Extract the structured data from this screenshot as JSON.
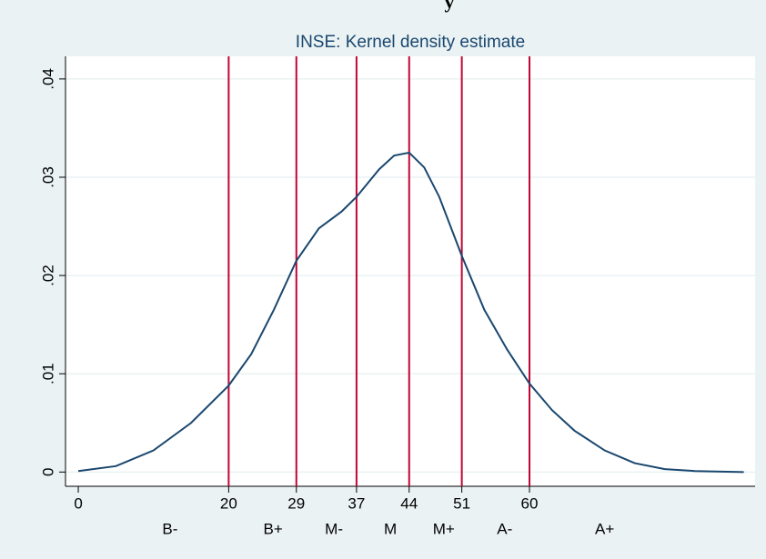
{
  "chart_data": {
    "type": "line",
    "supertitle": "y",
    "title": "INSE: Kernel density estimate",
    "x": [
      0,
      5,
      10,
      15,
      20,
      23,
      26,
      29,
      32,
      35,
      37,
      40,
      42,
      44,
      46,
      48,
      51,
      54,
      57,
      60,
      63,
      66,
      70,
      74,
      78,
      82,
      88.5
    ],
    "series": [
      {
        "name": "INSE",
        "color": "#1a476f",
        "values": [
          0.0001,
          0.0006,
          0.0022,
          0.005,
          0.0088,
          0.012,
          0.0165,
          0.0215,
          0.0248,
          0.0265,
          0.028,
          0.0308,
          0.0322,
          0.0325,
          0.031,
          0.028,
          0.022,
          0.0165,
          0.0125,
          0.009,
          0.0063,
          0.0042,
          0.0022,
          0.0009,
          0.0003,
          0.0001,
          0
        ]
      }
    ],
    "xlim": [
      -1.7,
      90
    ],
    "ylim": [
      -0.00145,
      0.0423
    ],
    "xticks": [
      0,
      20,
      29,
      37,
      44,
      51,
      60
    ],
    "yticks": [
      0,
      {
        "value": 0.01,
        "label": ".01"
      },
      {
        "value": 0.02,
        "label": ".02"
      },
      {
        "value": 0.03,
        "label": ".03"
      },
      {
        "value": 0.04,
        "label": ".04"
      }
    ],
    "grid": true,
    "reference_lines": {
      "color": "#c10534",
      "x": [
        20,
        29,
        37,
        44,
        51,
        60
      ]
    },
    "band_labels": [
      {
        "text": "B-",
        "x": 12.2
      },
      {
        "text": "B+",
        "x": 25.9
      },
      {
        "text": "M-",
        "x": 34
      },
      {
        "text": "M",
        "x": 41.5
      },
      {
        "text": "M+",
        "x": 48.6
      },
      {
        "text": "A-",
        "x": 56.7
      },
      {
        "text": "A+",
        "x": 70
      }
    ]
  }
}
